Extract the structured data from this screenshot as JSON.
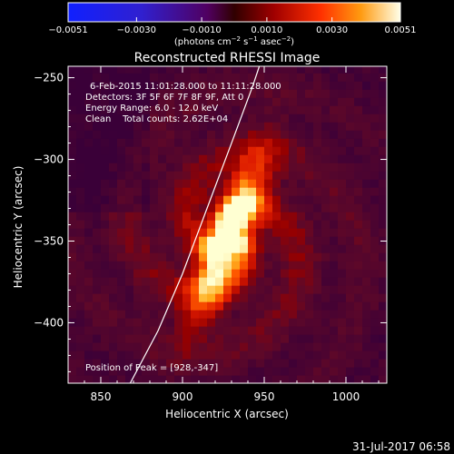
{
  "colorbar": {
    "ticks": [
      "−0.0051",
      "−0.0030",
      "−0.0010",
      "0.0010",
      "0.0030",
      "0.0051"
    ],
    "tick_values": [
      -0.0051,
      -0.003,
      -0.001,
      0.001,
      0.003,
      0.0051
    ],
    "range": [
      -0.0051,
      0.0051
    ],
    "unit_main": "(photons cm",
    "unit_exp1": "−2",
    "unit_mid": " s",
    "unit_exp2": "−1",
    "unit_mid2": " asec",
    "unit_exp3": "−2",
    "unit_end": ")"
  },
  "chart_data": {
    "type": "heatmap",
    "title": "Reconstructed RHESSI Image",
    "xlabel": "Heliocentric X (arcsec)",
    "ylabel": "Heliocentric Y (arcsec)",
    "xlim": [
      830,
      1025
    ],
    "ylim": [
      -437,
      -243
    ],
    "xticks": [
      850,
      900,
      950,
      1000
    ],
    "xtick_labels": [
      "850",
      "900",
      "950",
      "1000"
    ],
    "yticks": [
      -250,
      -300,
      -350,
      -400
    ],
    "ytick_labels": [
      "−250",
      "−300",
      "−350",
      "−400"
    ],
    "peak": [
      928,
      -347
    ],
    "limb_curve": [
      [
        868,
        -437
      ],
      [
        885,
        -405
      ],
      [
        900,
        -370
      ],
      [
        915,
        -330
      ],
      [
        930,
        -290
      ],
      [
        943,
        -255
      ],
      [
        947,
        -243
      ]
    ],
    "annotations": [
      "6-Feb-2015 11:01:28.000 to 11:11:28.000",
      "Detectors: 3F 5F 6F 7F 8F 9F, Att 0",
      "Energy Range: 6.0 - 12.0 keV",
      "Clean    Total counts: 2.62E+04",
      "Position of Peak = [928,-347]"
    ]
  },
  "footer": {
    "date": "31-Jul-2017 06:58"
  }
}
